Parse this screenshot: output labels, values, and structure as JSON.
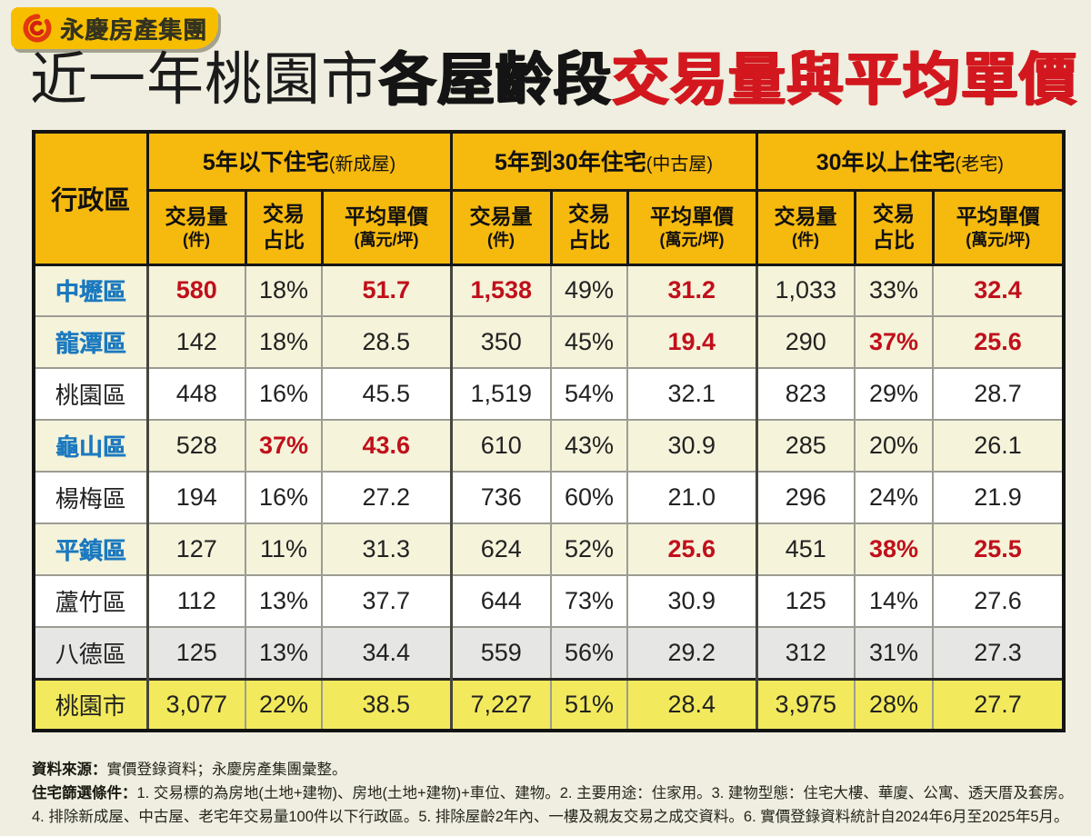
{
  "logo": {
    "brand": "永慶房產集團"
  },
  "title": {
    "part1": "近一年桃園市",
    "part2": "各屋齡段",
    "part3": "交易量與平均單價"
  },
  "table": {
    "corner_header": "行政區",
    "groups": [
      {
        "label": "5年以下住宅",
        "sublabel": "(新成屋)"
      },
      {
        "label": "5年到30年住宅",
        "sublabel": "(中古屋)"
      },
      {
        "label": "30年以上住宅",
        "sublabel": "(老宅)"
      }
    ],
    "sub_headers": [
      {
        "line1": "交易量",
        "line2": "(件)"
      },
      {
        "line1": "交易",
        "line2": "占比"
      },
      {
        "line1": "平均單價",
        "line2": "(萬元/坪)"
      }
    ],
    "row_styles": [
      {
        "bg": "cream",
        "blue": true,
        "red_cols": [
          0,
          2,
          3,
          5,
          8
        ]
      },
      {
        "bg": "cream",
        "blue": true,
        "red_cols": [
          5,
          7,
          8
        ]
      },
      {
        "bg": "white",
        "blue": false,
        "red_cols": []
      },
      {
        "bg": "cream",
        "blue": true,
        "red_cols": [
          1,
          2
        ]
      },
      {
        "bg": "white",
        "blue": false,
        "red_cols": []
      },
      {
        "bg": "cream",
        "blue": true,
        "red_cols": [
          5,
          7,
          8
        ]
      },
      {
        "bg": "white",
        "blue": false,
        "red_cols": []
      },
      {
        "bg": "gray",
        "blue": false,
        "red_cols": []
      },
      {
        "bg": "total",
        "blue": false,
        "red_cols": []
      }
    ]
  },
  "chart_data": {
    "type": "table",
    "title": "近一年桃園市各屋齡段交易量與平均單價",
    "column_groups": [
      "5年以下住宅(新成屋)",
      "5年到30年住宅(中古屋)",
      "30年以上住宅(老宅)"
    ],
    "columns": [
      "行政區",
      "交易量(件)",
      "交易占比",
      "平均單價(萬元/坪)",
      "交易量(件)",
      "交易占比",
      "平均單價(萬元/坪)",
      "交易量(件)",
      "交易占比",
      "平均單價(萬元/坪)"
    ],
    "rows": [
      [
        "中壢區",
        "580",
        "18%",
        "51.7",
        "1,538",
        "49%",
        "31.2",
        "1,033",
        "33%",
        "32.4"
      ],
      [
        "龍潭區",
        "142",
        "18%",
        "28.5",
        "350",
        "45%",
        "19.4",
        "290",
        "37%",
        "25.6"
      ],
      [
        "桃園區",
        "448",
        "16%",
        "45.5",
        "1,519",
        "54%",
        "32.1",
        "823",
        "29%",
        "28.7"
      ],
      [
        "龜山區",
        "528",
        "37%",
        "43.6",
        "610",
        "43%",
        "30.9",
        "285",
        "20%",
        "26.1"
      ],
      [
        "楊梅區",
        "194",
        "16%",
        "27.2",
        "736",
        "60%",
        "21.0",
        "296",
        "24%",
        "21.9"
      ],
      [
        "平鎮區",
        "127",
        "11%",
        "31.3",
        "624",
        "52%",
        "25.6",
        "451",
        "38%",
        "25.5"
      ],
      [
        "蘆竹區",
        "112",
        "13%",
        "37.7",
        "644",
        "73%",
        "30.9",
        "125",
        "14%",
        "27.6"
      ],
      [
        "八德區",
        "125",
        "13%",
        "34.4",
        "559",
        "56%",
        "29.2",
        "312",
        "31%",
        "27.3"
      ],
      [
        "桃園市",
        "3,077",
        "22%",
        "38.5",
        "7,227",
        "51%",
        "28.4",
        "3,975",
        "28%",
        "27.7"
      ]
    ]
  },
  "notes": {
    "line1_label": "資料來源：",
    "line1_text": "實價登錄資料；永慶房產集團彙整。",
    "line2_label": "住宅篩選條件：",
    "line2_text": "1. 交易標的為房地(土地+建物)、房地(土地+建物)+車位、建物。2. 主要用途：住家用。3. 建物型態：住宅大樓、華廈、公寓、透天厝及套房。",
    "line3": "4. 排除新成屋、中古屋、老宅年交易量100件以下行政區。5. 排除屋齡2年內、一樓及親友交易之成交資料。6. 實價登錄資料統計自2024年6月至2025年5月。"
  },
  "colors": {
    "page_bg": "#EFEEE0",
    "logo_yellow": "#F7BE00",
    "header_yellow": "#F6B90E",
    "row_cream": "#F5F3DA",
    "row_gray": "#E6E6E5",
    "total_yellow": "#F2EA5C",
    "district_blue": "#1B79BF",
    "accent_red": "#C0101B",
    "title_red": "#D2181E"
  }
}
